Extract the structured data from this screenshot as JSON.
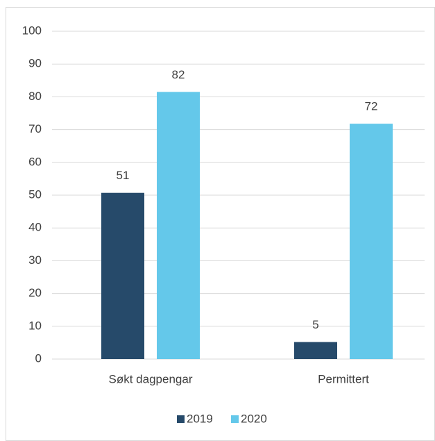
{
  "chart_data": {
    "type": "bar",
    "categories": [
      "Søkt dagpengar",
      "Permittert"
    ],
    "series": [
      {
        "name": "2019",
        "color": "#264a6a",
        "values": [
          50.7,
          5.2
        ],
        "value_labels": [
          "51",
          "5"
        ]
      },
      {
        "name": "2020",
        "color": "#64c8ea",
        "values": [
          81.5,
          71.8
        ],
        "value_labels": [
          "82",
          "72"
        ]
      }
    ],
    "ylim": [
      0,
      100
    ],
    "yticks": [
      0,
      10,
      20,
      30,
      40,
      50,
      60,
      70,
      80,
      90,
      100
    ],
    "grid": true,
    "legend": "bottom"
  }
}
